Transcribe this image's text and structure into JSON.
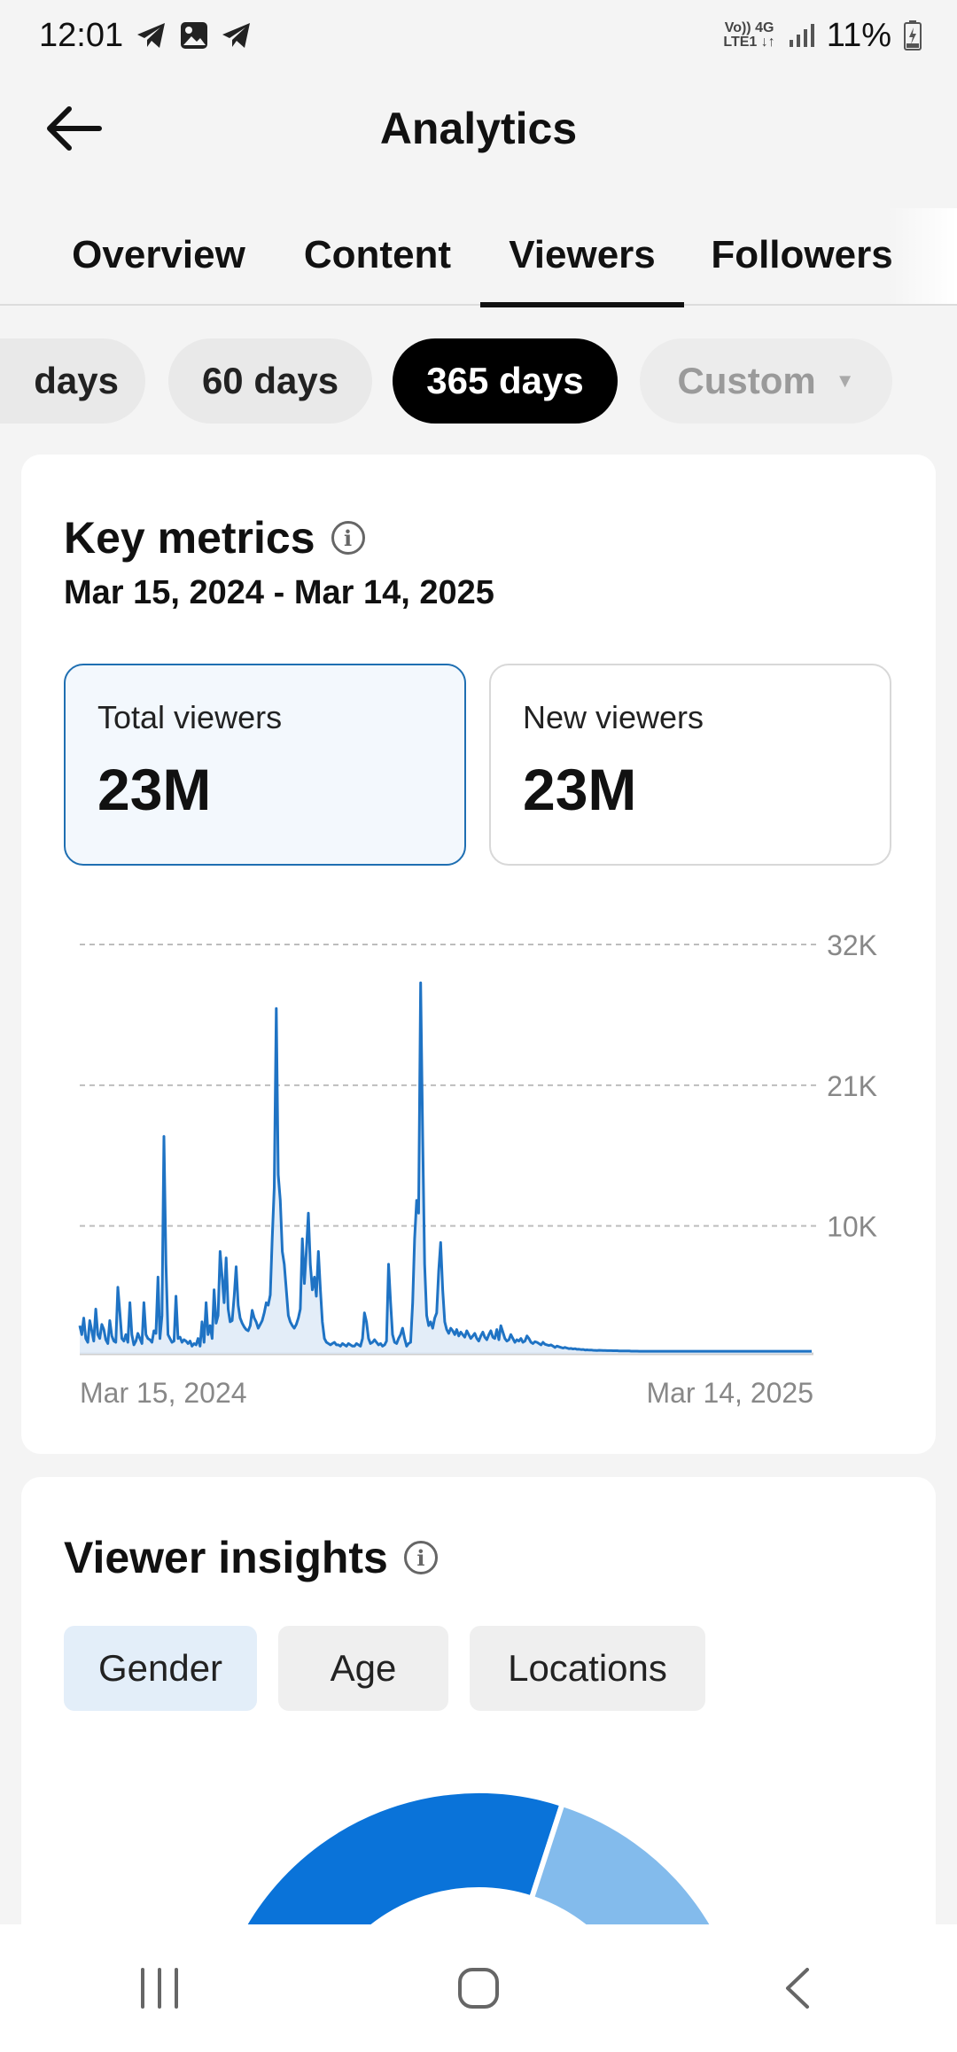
{
  "status_bar": {
    "time": "12:01",
    "network_top": "Vo)) 4G",
    "network_bottom": "LTE1 ↓↑",
    "battery": "11%"
  },
  "header": {
    "title": "Analytics",
    "back_icon": "arrow-left-icon"
  },
  "tabs": [
    {
      "label": "Overview",
      "active": false
    },
    {
      "label": "Content",
      "active": false
    },
    {
      "label": "Viewers",
      "active": true
    },
    {
      "label": "Followers",
      "active": false
    }
  ],
  "range_chips": [
    {
      "label": "days",
      "state": "normal"
    },
    {
      "label": "60 days",
      "state": "normal"
    },
    {
      "label": "365 days",
      "state": "active"
    },
    {
      "label": "Custom",
      "state": "disabled"
    }
  ],
  "key_metrics": {
    "title": "Key metrics",
    "date_range": "Mar 15, 2024 - Mar 14, 2025",
    "metrics": [
      {
        "label": "Total viewers",
        "value": "23M",
        "selected": true
      },
      {
        "label": "New viewers",
        "value": "23M",
        "selected": false
      }
    ]
  },
  "chart_data": {
    "type": "line",
    "y_ticks": [
      "32K",
      "21K",
      "10K"
    ],
    "x_labels": [
      "Mar 15, 2024",
      "Mar 14, 2025"
    ],
    "ylim": [
      0,
      32000
    ],
    "grid": true,
    "series_color": "#1f73c4",
    "fill_color": "#dce9f6",
    "values": [
      2200,
      1500,
      2800,
      1200,
      900,
      2600,
      1800,
      1000,
      3500,
      1500,
      1200,
      2300,
      1900,
      1100,
      800,
      2600,
      1400,
      1000,
      900,
      5200,
      3200,
      1200,
      1000,
      1500,
      900,
      4000,
      1500,
      700,
      1000,
      1600,
      1200,
      800,
      4000,
      1500,
      1200,
      1100,
      900,
      1800,
      1600,
      6000,
      1200,
      3000,
      17000,
      7000,
      1500,
      1200,
      900,
      1000,
      4500,
      1200,
      1300,
      900,
      1100,
      1000,
      800,
      1000,
      600,
      800,
      700,
      1200,
      600,
      2500,
      900,
      4000,
      1500,
      2200,
      1200,
      5000,
      2400,
      3000,
      8000,
      6000,
      4000,
      7500,
      3500,
      2500,
      2600,
      4500,
      6800,
      3800,
      2800,
      2400,
      2100,
      1900,
      1800,
      2200,
      3400,
      2800,
      2500,
      2000,
      2300,
      2600,
      3200,
      4000,
      3800,
      4600,
      9000,
      13000,
      27000,
      14000,
      12000,
      8000,
      7000,
      5000,
      3000,
      2500,
      2200,
      2000,
      2300,
      2800,
      3500,
      9000,
      5500,
      8000,
      11000,
      7000,
      5000,
      6000,
      4500,
      8000,
      5000,
      2500,
      1200,
      900,
      800,
      700,
      800,
      900,
      700,
      700,
      600,
      800,
      700,
      600,
      800,
      700,
      600,
      600,
      800,
      700,
      600,
      1200,
      3200,
      2500,
      1200,
      800,
      900,
      1100,
      900,
      700,
      800,
      600,
      700,
      1000,
      7000,
      4000,
      1500,
      900,
      800,
      1200,
      1500,
      2000,
      1200,
      600,
      800,
      900,
      4000,
      9000,
      12000,
      11000,
      29000,
      17000,
      7000,
      3000,
      2200,
      2500,
      2000,
      2800,
      3200,
      6500,
      8700,
      5000,
      2500,
      1900,
      1600,
      2000,
      1800,
      1500,
      1900,
      1400,
      1700,
      1500,
      1300,
      1800,
      1500,
      1200,
      1400,
      1600,
      1200,
      1000,
      1400,
      1700,
      1300,
      1100,
      1500,
      1800,
      1300,
      1200,
      1900,
      1100,
      2200,
      1700,
      1200,
      1000,
      1100,
      1500,
      1200,
      900,
      1100,
      1000,
      1200,
      900,
      1000,
      1400,
      1200,
      900,
      800,
      950,
      900,
      800,
      700,
      900,
      750,
      700,
      650,
      700,
      600,
      500,
      600,
      550,
      500,
      450,
      500,
      450,
      400,
      420,
      380,
      400,
      350,
      360,
      330,
      340,
      300,
      310,
      290,
      300,
      280,
      270,
      260,
      280,
      270,
      260,
      260,
      250,
      250,
      250,
      240,
      240,
      240,
      230,
      230,
      230,
      220,
      220,
      220,
      210,
      210,
      210,
      210,
      200,
      200,
      200,
      200,
      200,
      200,
      200,
      200,
      200,
      200,
      200,
      200,
      200,
      200,
      200,
      200,
      200,
      200,
      200,
      200,
      200,
      200,
      200,
      200,
      200,
      200,
      200,
      200,
      200,
      200,
      200,
      200,
      200,
      200,
      200,
      200,
      200,
      200,
      200,
      200,
      200,
      200,
      200,
      200,
      200,
      200,
      200,
      200,
      200,
      200,
      200,
      200,
      200,
      200,
      200,
      200,
      200,
      200,
      200,
      200,
      200,
      200,
      200,
      200,
      200,
      200,
      200,
      200,
      200,
      200,
      200,
      200,
      200,
      200,
      200,
      200,
      200,
      200,
      200,
      200,
      200,
      200,
      200,
      200,
      200,
      200,
      200
    ]
  },
  "viewer_insights": {
    "title": "Viewer insights",
    "segments": [
      {
        "label": "Gender",
        "active": true
      },
      {
        "label": "Age",
        "active": false
      },
      {
        "label": "Locations",
        "active": false
      }
    ],
    "donut_colors": [
      "#0a73d9",
      "#83bbec"
    ],
    "donut_values": [
      0.6,
      0.4
    ]
  },
  "nav_bar": {
    "recents": "recents-icon",
    "home": "home-icon",
    "back": "back-icon"
  }
}
